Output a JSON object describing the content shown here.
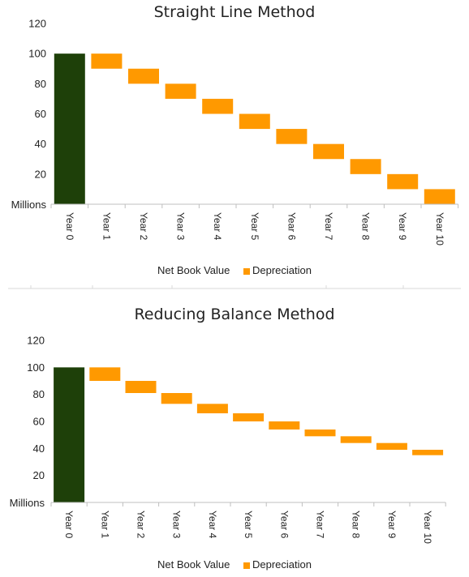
{
  "colors": {
    "net_book_value": "#1e4009",
    "depreciation": "#ff9900",
    "axis": "#bfbfbf"
  },
  "chart_data": [
    {
      "type": "bar",
      "subtype": "waterfall",
      "title": "Straight Line Method",
      "ylabel": "Millions",
      "ylim": [
        0,
        120
      ],
      "yticks": [
        20,
        40,
        60,
        80,
        100,
        120
      ],
      "grid": false,
      "legend_position": "bottom",
      "categories": [
        "Year 0",
        "Year 1",
        "Year 2",
        "Year 3",
        "Year 4",
        "Year 5",
        "Year 6",
        "Year 7",
        "Year 8",
        "Year 9",
        "Year 10"
      ],
      "series": [
        {
          "name": "Net Book Value",
          "values": [
            100,
            null,
            null,
            null,
            null,
            null,
            null,
            null,
            null,
            null,
            null
          ]
        },
        {
          "name": "Depreciation",
          "values": [
            null,
            10,
            10,
            10,
            10,
            10,
            10,
            10,
            10,
            10,
            10
          ],
          "ranges": [
            null,
            [
              90,
              100
            ],
            [
              80,
              90
            ],
            [
              70,
              80
            ],
            [
              60,
              70
            ],
            [
              50,
              60
            ],
            [
              40,
              50
            ],
            [
              30,
              40
            ],
            [
              20,
              30
            ],
            [
              10,
              20
            ],
            [
              0,
              10
            ]
          ]
        }
      ]
    },
    {
      "type": "bar",
      "subtype": "waterfall",
      "title": "Reducing Balance Method",
      "ylabel": "Millions",
      "ylim": [
        0,
        120
      ],
      "yticks": [
        20,
        40,
        60,
        80,
        100,
        120
      ],
      "grid": false,
      "legend_position": "bottom",
      "categories": [
        "Year 0",
        "Year 1",
        "Year 2",
        "Year 3",
        "Year 4",
        "Year 5",
        "Year 6",
        "Year 7",
        "Year 8",
        "Year 9",
        "Year 10"
      ],
      "series": [
        {
          "name": "Net Book Value",
          "values": [
            100,
            null,
            null,
            null,
            null,
            null,
            null,
            null,
            null,
            null,
            null
          ]
        },
        {
          "name": "Depreciation",
          "values": [
            null,
            10,
            9,
            8,
            7,
            6,
            5,
            5,
            4,
            4,
            3
          ],
          "ranges": [
            null,
            [
              90,
              100
            ],
            [
              81,
              90
            ],
            [
              73,
              81
            ],
            [
              66,
              73
            ],
            [
              60,
              66
            ],
            [
              54,
              60
            ],
            [
              49,
              54
            ],
            [
              44,
              49
            ],
            [
              39,
              44
            ],
            [
              35,
              39
            ]
          ]
        }
      ]
    }
  ]
}
